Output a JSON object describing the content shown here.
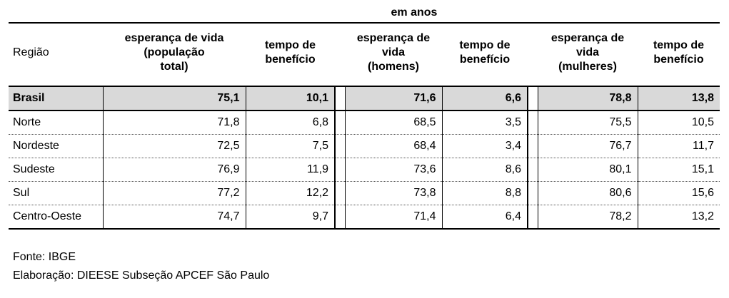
{
  "table": {
    "unit_label": "em anos",
    "headers": {
      "region": "Região",
      "pop_esperanca": [
        "esperança de vida",
        "(população",
        "total)"
      ],
      "pop_tempo": [
        "tempo de",
        "benefício"
      ],
      "hom_esperanca": [
        "esperança de",
        "vida",
        "(homens)"
      ],
      "hom_tempo": [
        "tempo de",
        "benefício"
      ],
      "mul_esperanca": [
        "esperança de",
        "vida",
        "(mulheres)"
      ],
      "mul_tempo": [
        "tempo de",
        "benefício"
      ]
    },
    "rows": [
      {
        "region": "Brasil",
        "pop_esp": "75,1",
        "pop_tempo": "10,1",
        "hom_esp": "71,6",
        "hom_tempo": "6,6",
        "mul_esp": "78,8",
        "mul_tempo": "13,8"
      },
      {
        "region": "Norte",
        "pop_esp": "71,8",
        "pop_tempo": "6,8",
        "hom_esp": "68,5",
        "hom_tempo": "3,5",
        "mul_esp": "75,5",
        "mul_tempo": "10,5"
      },
      {
        "region": "Nordeste",
        "pop_esp": "72,5",
        "pop_tempo": "7,5",
        "hom_esp": "68,4",
        "hom_tempo": "3,4",
        "mul_esp": "76,7",
        "mul_tempo": "11,7"
      },
      {
        "region": "Sudeste",
        "pop_esp": "76,9",
        "pop_tempo": "11,9",
        "hom_esp": "73,6",
        "hom_tempo": "8,6",
        "mul_esp": "80,1",
        "mul_tempo": "15,1"
      },
      {
        "region": "Sul",
        "pop_esp": "77,2",
        "pop_tempo": "12,2",
        "hom_esp": "73,8",
        "hom_tempo": "8,8",
        "mul_esp": "80,6",
        "mul_tempo": "15,6"
      },
      {
        "region": "Centro-Oeste",
        "pop_esp": "74,7",
        "pop_tempo": "9,7",
        "hom_esp": "71,4",
        "hom_tempo": "6,4",
        "mul_esp": "78,2",
        "mul_tempo": "13,2"
      }
    ]
  },
  "footer": {
    "source": "Fonte: IBGE",
    "author": "Elaboração: DIEESE Subseção APCEF São Paulo"
  }
}
